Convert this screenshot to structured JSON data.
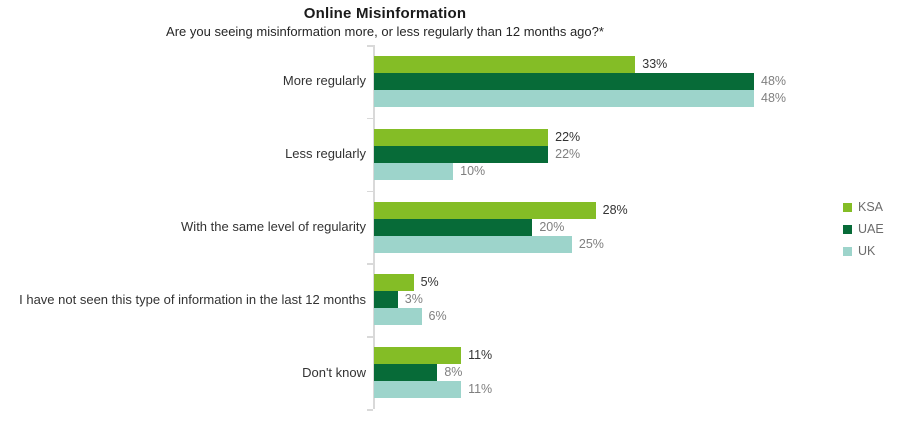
{
  "chart_data": {
    "type": "bar",
    "orientation": "horizontal",
    "title": "Online Misinformation",
    "subtitle": "Are you seeing misinformation more, or less regularly than 12 months ago?*",
    "categories": [
      "More regularly",
      "Less regularly",
      "With the same level of regularity",
      "I have not seen this type of information in the last 12 months",
      "Don't know"
    ],
    "series": [
      {
        "name": "KSA",
        "color": "#84BD26",
        "label_color": "#333333",
        "values": [
          33,
          22,
          28,
          5,
          11
        ]
      },
      {
        "name": "UAE",
        "color": "#076B38",
        "label_color": "#7F7F7F",
        "values": [
          48,
          22,
          20,
          3,
          8
        ]
      },
      {
        "name": "UK",
        "color": "#9DD4CB",
        "label_color": "#7F7F7F",
        "values": [
          48,
          10,
          25,
          6,
          11
        ]
      }
    ],
    "value_suffix": "%",
    "xlim": [
      0,
      50
    ],
    "grid": false,
    "legend_position": "right",
    "axis_color": "#D9D9D9"
  }
}
